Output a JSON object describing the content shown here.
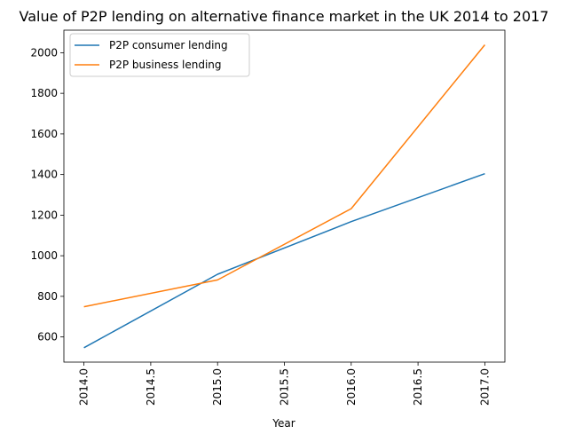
{
  "chart_data": {
    "type": "line",
    "title": "Value of P2P lending on alternative finance market in the UK 2014 to 2017",
    "xlabel": "Year",
    "ylabel": "",
    "x": [
      2014,
      2015,
      2016,
      2017
    ],
    "x_ticks": [
      2014.0,
      2014.5,
      2015.0,
      2015.5,
      2016.0,
      2016.5,
      2017.0
    ],
    "x_tick_labels": [
      "2014.0",
      "2014.5",
      "2015.0",
      "2015.5",
      "2016.0",
      "2016.5",
      "2017.0"
    ],
    "y_ticks": [
      600,
      800,
      1000,
      1200,
      1400,
      1600,
      1800,
      2000
    ],
    "y_tick_labels": [
      "600",
      "800",
      "1000",
      "1200",
      "1400",
      "1600",
      "1800",
      "2000"
    ],
    "xlim": [
      2013.85,
      2017.15
    ],
    "ylim": [
      476,
      2111
    ],
    "grid": false,
    "legend_position": "top-left",
    "series": [
      {
        "name": "P2P consumer lending",
        "color": "#1f77b4",
        "values": [
          547,
          909,
          1168,
          1404
        ]
      },
      {
        "name": "P2P business lending",
        "color": "#ff7f0e",
        "values": [
          749,
          881,
          1232,
          2039
        ]
      }
    ]
  }
}
